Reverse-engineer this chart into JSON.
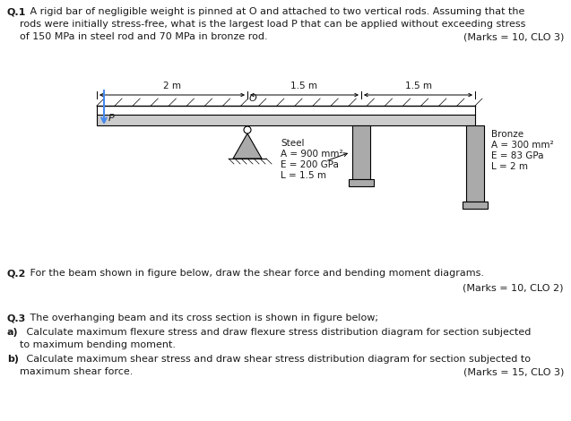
{
  "q1_bold": "Q.1",
  "q1_text_line1": " A rigid bar of negligible weight is pinned at O and attached to two vertical rods. Assuming that the",
  "q1_text_line2": "rods were initially stress-free, what is the largest load P that can be applied without exceeding stress",
  "q1_text_line3": "of 150 MPa in steel rod and 70 MPa in bronze rod.",
  "q1_marks": "(Marks = 10, CLO 3)",
  "q2_bold": "Q.2",
  "q2_text": " For the beam shown in figure below, draw the shear force and bending moment diagrams.",
  "q2_marks": "(Marks = 10, CLO 2)",
  "q3_bold": "Q.3",
  "q3_text": " The overhanging beam and its cross section is shown in figure below;",
  "q3a_bold": "a)",
  "q3a_text": " Calculate maximum flexure stress and draw flexure stress distribution diagram for section subjected",
  "q3a_text2": "to maximum bending moment.",
  "q3b_bold": "b)",
  "q3b_text": " Calculate maximum shear stress and draw shear stress distribution diagram for section subjected to",
  "q3b_text2": "maximum shear force.",
  "q3_marks": "(Marks = 15, CLO 3)",
  "steel_line1": "Steel",
  "steel_line2": "A = 900 mm²",
  "steel_line3": "E = 200 GPa",
  "steel_line4": "L = 1.5 m",
  "bronze_line1": "Bronze",
  "bronze_line2": "A = 300 mm²",
  "bronze_line3": "E = 83 GPa",
  "bronze_line4": "L = 2 m",
  "dim_2m": "2 m",
  "dim_1p5m_1": "1.5 m",
  "dim_1p5m_2": "1.5 m",
  "pin_label": "O",
  "load_label": "P",
  "bg_color": "#ffffff",
  "text_color": "#1a1a1a",
  "bar_color": "#cccccc",
  "rod_color": "#aaaaaa",
  "pin_color": "#aaaaaa",
  "arrow_color": "#4488ee",
  "hatch_color": "#555555"
}
